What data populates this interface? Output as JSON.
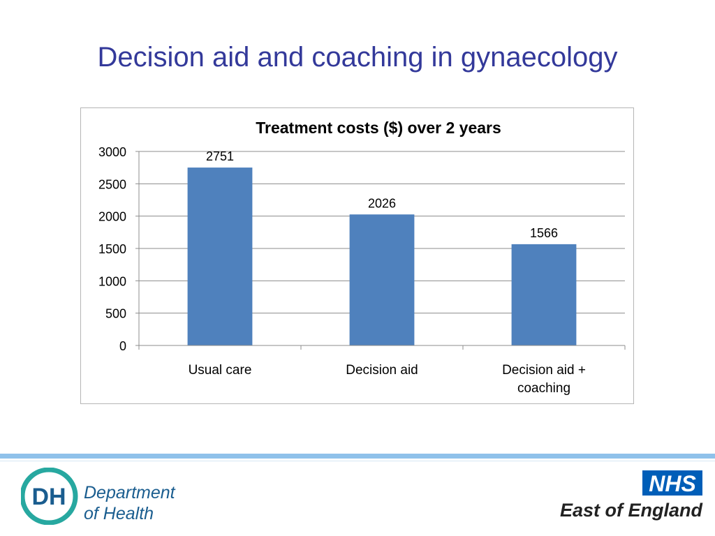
{
  "slide": {
    "title": "Decision aid and coaching in gynaecology"
  },
  "chart_data": {
    "type": "bar",
    "title": "Treatment costs ($) over 2 years",
    "categories": [
      "Usual care",
      "Decision aid",
      "Decision aid + coaching"
    ],
    "category_lines": [
      [
        "Usual care"
      ],
      [
        "Decision aid"
      ],
      [
        "Decision aid +",
        "coaching"
      ]
    ],
    "values": [
      2751,
      2026,
      1566
    ],
    "data_labels": [
      "2751",
      "2026",
      "1566"
    ],
    "ylim": [
      0,
      3000
    ],
    "yticks": [
      0,
      500,
      1000,
      1500,
      2000,
      2500,
      3000
    ],
    "xlabel": "",
    "ylabel": "",
    "grid": true,
    "legend": "none",
    "bar_color": "#4f81bd"
  },
  "footer": {
    "dh_logo": {
      "mark": "DH",
      "line1": "Department",
      "line2": "of Health",
      "color": "#1a5d8f",
      "accent": "#27a8a0"
    },
    "nhs_logo": {
      "mark": "NHS",
      "region": "East of England",
      "color": "#005eb8"
    }
  }
}
